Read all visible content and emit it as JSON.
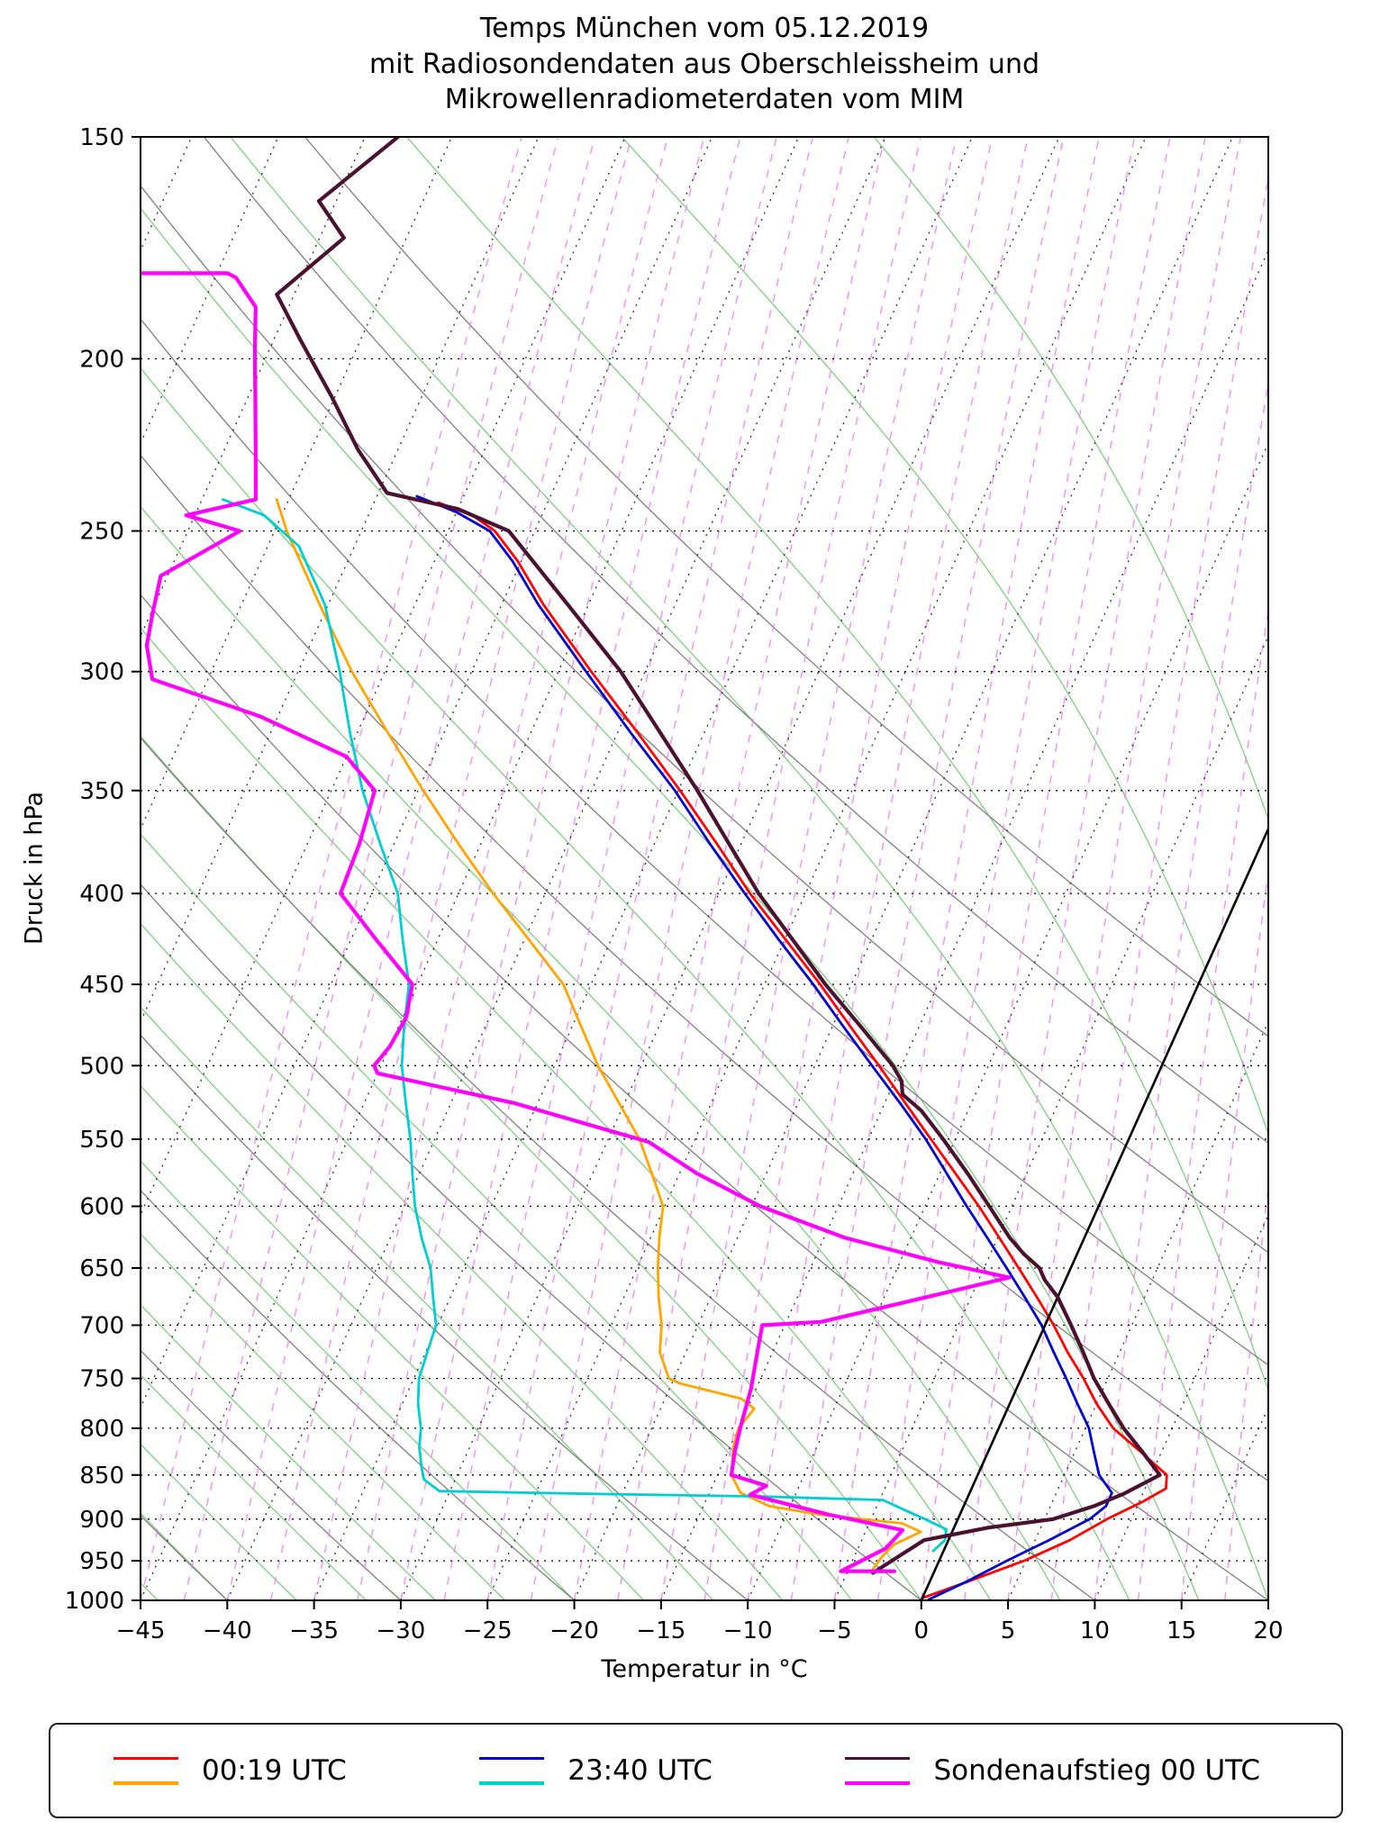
{
  "chart_data": {
    "type": "line",
    "title_lines": [
      "Temps München vom 05.12.2019",
      "mit Radiosondendaten aus Oberschleissheim und",
      "Mikrowellenradiometerdaten vom MIM"
    ],
    "x_axis": {
      "label": "Temperatur in °C",
      "unit": "°C",
      "min": -45,
      "max": 20,
      "tick_values": [
        -45,
        -40,
        -35,
        -30,
        -25,
        -20,
        -15,
        -10,
        -5,
        0,
        5,
        10,
        15,
        20
      ],
      "tick_labels": [
        "−45",
        "−40",
        "−35",
        "−30",
        "−25",
        "−20",
        "−15",
        "−10",
        "−5",
        "0",
        "5",
        "10",
        "15",
        "20"
      ]
    },
    "y_axis": {
      "label": "Druck in hPa",
      "unit": "hPa",
      "scale": "log",
      "min": 150,
      "max": 1000,
      "direction": "down",
      "tick_values": [
        150,
        200,
        250,
        300,
        350,
        400,
        450,
        500,
        550,
        600,
        650,
        700,
        750,
        800,
        850,
        900,
        950,
        1000
      ],
      "tick_labels": [
        "150",
        "200",
        "250",
        "300",
        "350",
        "400",
        "450",
        "500",
        "550",
        "600",
        "650",
        "700",
        "750",
        "800",
        "850",
        "900",
        "950",
        "1000"
      ]
    },
    "skew_deg_per_ln_p": 20,
    "legend": {
      "entries": [
        {
          "label": "00:19 UTC",
          "temperature_color": "#ff0000",
          "dewpoint_color": "#ffa500"
        },
        {
          "label": "23:40 UTC",
          "temperature_color": "#0000cd",
          "dewpoint_color": "#00ced1"
        },
        {
          "label": "Sondenaufstieg 00 UTC",
          "temperature_color": "#4a1130",
          "dewpoint_color": "#ff00ff"
        }
      ]
    },
    "background": {
      "isotherms": {
        "start": -110,
        "end": 45,
        "step": 5
      },
      "dry_adiabats": {
        "start": -80,
        "end": 70,
        "step": 10
      },
      "moist_adiabats": {
        "start": -64,
        "end": 32,
        "step": 4
      },
      "mixing_lines": {
        "start": -45,
        "end": 20,
        "step": 2.5
      },
      "isotherm_color": "#2b2b2b",
      "dry_adiabat_color": "#7f7f7f",
      "moist_adiabat_color": "#7ccf7c",
      "mixing_line_color": "#ee82ee",
      "pressure_line_color": "#000000"
    },
    "series": [
      {
        "id": "temp-0019",
        "name": "00:19 UTC Temperatur",
        "color": "#ff0000",
        "width": 2.8,
        "points": [
          [
            997,
            0.0
          ],
          [
            975,
            2.3
          ],
          [
            950,
            4.9
          ],
          [
            925,
            7.0
          ],
          [
            900,
            8.6
          ],
          [
            880,
            10.2
          ],
          [
            865,
            11.2
          ],
          [
            850,
            10.9
          ],
          [
            825,
            8.8
          ],
          [
            800,
            6.6
          ],
          [
            775,
            5.0
          ],
          [
            750,
            3.6
          ],
          [
            725,
            2.0
          ],
          [
            700,
            0.5
          ],
          [
            675,
            -1.2
          ],
          [
            650,
            -3.0
          ],
          [
            625,
            -4.9
          ],
          [
            600,
            -6.9
          ],
          [
            575,
            -9.1
          ],
          [
            550,
            -11.4
          ],
          [
            525,
            -13.8
          ],
          [
            500,
            -16.3
          ],
          [
            475,
            -19.0
          ],
          [
            450,
            -21.8
          ],
          [
            425,
            -24.9
          ],
          [
            400,
            -28.2
          ],
          [
            375,
            -31.4
          ],
          [
            350,
            -34.9
          ],
          [
            325,
            -38.8
          ],
          [
            300,
            -43.1
          ],
          [
            275,
            -47.6
          ],
          [
            260,
            -50.2
          ],
          [
            250,
            -52.3
          ],
          [
            245,
            -54.0
          ],
          [
            241,
            -56.3
          ]
        ]
      },
      {
        "id": "dew-0019",
        "name": "00:19 UTC Taupunkt",
        "color": "#ffa500",
        "width": 2.8,
        "points": [
          [
            960,
            -3.6
          ],
          [
            945,
            -3.4
          ],
          [
            930,
            -3.0
          ],
          [
            915,
            -1.8
          ],
          [
            905,
            -3.1
          ],
          [
            895,
            -8.0
          ],
          [
            885,
            -11.2
          ],
          [
            870,
            -13.2
          ],
          [
            850,
            -14.2
          ],
          [
            820,
            -14.8
          ],
          [
            800,
            -15.0
          ],
          [
            780,
            -14.6
          ],
          [
            770,
            -15.6
          ],
          [
            755,
            -19.5
          ],
          [
            750,
            -20.3
          ],
          [
            725,
            -21.5
          ],
          [
            700,
            -22.1
          ],
          [
            675,
            -23.0
          ],
          [
            650,
            -23.8
          ],
          [
            625,
            -24.5
          ],
          [
            600,
            -25.1
          ],
          [
            575,
            -26.6
          ],
          [
            550,
            -28.2
          ],
          [
            525,
            -30.3
          ],
          [
            500,
            -32.5
          ],
          [
            475,
            -34.5
          ],
          [
            450,
            -36.6
          ],
          [
            425,
            -39.7
          ],
          [
            400,
            -43.0
          ],
          [
            375,
            -46.3
          ],
          [
            350,
            -49.7
          ],
          [
            325,
            -53.2
          ],
          [
            300,
            -56.9
          ],
          [
            275,
            -60.5
          ],
          [
            250,
            -64.3
          ],
          [
            240,
            -65.7
          ]
        ]
      },
      {
        "id": "temp-2340",
        "name": "23:40 UTC Temperatur",
        "color": "#0000cd",
        "width": 2.8,
        "points": [
          [
            999,
            0.4
          ],
          [
            975,
            2.2
          ],
          [
            950,
            3.9
          ],
          [
            925,
            5.8
          ],
          [
            900,
            7.6
          ],
          [
            885,
            8.2
          ],
          [
            870,
            8.2
          ],
          [
            850,
            7.0
          ],
          [
            825,
            6.1
          ],
          [
            800,
            5.2
          ],
          [
            775,
            3.9
          ],
          [
            750,
            2.6
          ],
          [
            725,
            1.2
          ],
          [
            700,
            -0.2
          ],
          [
            675,
            -1.9
          ],
          [
            650,
            -3.7
          ],
          [
            625,
            -5.6
          ],
          [
            600,
            -7.6
          ],
          [
            575,
            -9.6
          ],
          [
            550,
            -11.7
          ],
          [
            525,
            -14.1
          ],
          [
            500,
            -16.7
          ],
          [
            475,
            -19.4
          ],
          [
            450,
            -22.2
          ],
          [
            425,
            -25.3
          ],
          [
            400,
            -28.5
          ],
          [
            375,
            -31.8
          ],
          [
            350,
            -35.2
          ],
          [
            325,
            -39.2
          ],
          [
            300,
            -43.4
          ],
          [
            275,
            -47.9
          ],
          [
            260,
            -50.5
          ],
          [
            250,
            -52.6
          ],
          [
            244,
            -55.0
          ],
          [
            239,
            -57.7
          ]
        ]
      },
      {
        "id": "dew-2340",
        "name": "23:40 UTC Taupunkt",
        "color": "#00ced1",
        "width": 2.8,
        "points": [
          [
            938,
            -0.6
          ],
          [
            925,
            -0.2
          ],
          [
            912,
            -0.4
          ],
          [
            900,
            -1.9
          ],
          [
            888,
            -3.5
          ],
          [
            878,
            -4.8
          ],
          [
            874,
            -12.0
          ],
          [
            871,
            -22.0
          ],
          [
            868,
            -30.6
          ],
          [
            855,
            -31.8
          ],
          [
            840,
            -32.3
          ],
          [
            820,
            -32.9
          ],
          [
            800,
            -33.3
          ],
          [
            775,
            -34.1
          ],
          [
            750,
            -34.7
          ],
          [
            725,
            -34.9
          ],
          [
            700,
            -35.1
          ],
          [
            675,
            -36.0
          ],
          [
            650,
            -36.9
          ],
          [
            625,
            -38.2
          ],
          [
            600,
            -39.4
          ],
          [
            575,
            -40.4
          ],
          [
            550,
            -41.4
          ],
          [
            525,
            -42.6
          ],
          [
            500,
            -43.8
          ],
          [
            475,
            -44.7
          ],
          [
            450,
            -45.5
          ],
          [
            425,
            -47.0
          ],
          [
            400,
            -48.5
          ],
          [
            375,
            -50.8
          ],
          [
            350,
            -53.2
          ],
          [
            325,
            -55.4
          ],
          [
            300,
            -57.6
          ],
          [
            275,
            -60.2
          ],
          [
            255,
            -63.2
          ],
          [
            245,
            -66.0
          ],
          [
            240,
            -68.8
          ]
        ]
      },
      {
        "id": "zero-isotherm",
        "name": "0 °C Isotherme",
        "color": "#000000",
        "width": 2.6,
        "points": [
          [
            1000,
            0
          ],
          [
            355,
            0
          ]
        ]
      },
      {
        "id": "temp-sonde",
        "name": "Sondenaufstieg 00 UTC Temperatur",
        "color": "#4a1130",
        "width": 4.2,
        "points": [
          [
            965,
            -3.5
          ],
          [
            940,
            -2.2
          ],
          [
            925,
            -1.4
          ],
          [
            910,
            2.0
          ],
          [
            900,
            5.5
          ],
          [
            885,
            7.5
          ],
          [
            871,
            8.9
          ],
          [
            850,
            10.5
          ],
          [
            825,
            8.9
          ],
          [
            800,
            7.2
          ],
          [
            775,
            5.7
          ],
          [
            750,
            4.2
          ],
          [
            725,
            2.9
          ],
          [
            700,
            1.5
          ],
          [
            675,
            0.0
          ],
          [
            660,
            -1.2
          ],
          [
            650,
            -1.8
          ],
          [
            638,
            -3.1
          ],
          [
            625,
            -4.3
          ],
          [
            600,
            -6.3
          ],
          [
            575,
            -8.4
          ],
          [
            550,
            -10.7
          ],
          [
            530,
            -12.7
          ],
          [
            519,
            -14.2
          ],
          [
            510,
            -14.6
          ],
          [
            500,
            -15.5
          ],
          [
            475,
            -18.4
          ],
          [
            450,
            -21.5
          ],
          [
            425,
            -24.5
          ],
          [
            400,
            -27.7
          ],
          [
            375,
            -30.7
          ],
          [
            350,
            -33.9
          ],
          [
            325,
            -37.5
          ],
          [
            300,
            -41.4
          ],
          [
            275,
            -46.2
          ],
          [
            250,
            -51.5
          ],
          [
            243,
            -55.0
          ],
          [
            238,
            -59.5
          ],
          [
            225,
            -62.3
          ],
          [
            210,
            -65.2
          ],
          [
            195,
            -68.5
          ],
          [
            184,
            -71.0
          ],
          [
            171,
            -68.6
          ],
          [
            163,
            -71.0
          ],
          [
            150,
            -68.1
          ]
        ]
      },
      {
        "id": "dew-sonde",
        "name": "Sondenaufstieg 00 UTC Taupunkt",
        "color": "#ff00ff",
        "width": 4.2,
        "points": [
          [
            963,
            -2.3
          ],
          [
            963,
            -5.4
          ],
          [
            935,
            -3.4
          ],
          [
            913,
            -2.9
          ],
          [
            895,
            -7.5
          ],
          [
            872,
            -12.6
          ],
          [
            862,
            -11.9
          ],
          [
            850,
            -14.2
          ],
          [
            825,
            -14.6
          ],
          [
            800,
            -14.9
          ],
          [
            780,
            -15.1
          ],
          [
            760,
            -15.3
          ],
          [
            730,
            -15.8
          ],
          [
            700,
            -16.3
          ],
          [
            697,
            -13.0
          ],
          [
            680,
            -8.8
          ],
          [
            658,
            -3.3
          ],
          [
            645,
            -7.8
          ],
          [
            625,
            -13.8
          ],
          [
            600,
            -19.5
          ],
          [
            575,
            -24.0
          ],
          [
            552,
            -27.6
          ],
          [
            525,
            -36.3
          ],
          [
            505,
            -45.0
          ],
          [
            500,
            -45.4
          ],
          [
            488,
            -45.0
          ],
          [
            470,
            -44.8
          ],
          [
            450,
            -45.3
          ],
          [
            425,
            -48.5
          ],
          [
            400,
            -51.8
          ],
          [
            375,
            -52.0
          ],
          [
            350,
            -52.5
          ],
          [
            335,
            -55.0
          ],
          [
            318,
            -61.0
          ],
          [
            303,
            -68.2
          ],
          [
            290,
            -69.4
          ],
          [
            278,
            -69.9
          ],
          [
            265,
            -70.4
          ],
          [
            250,
            -67.0
          ],
          [
            245,
            -70.5
          ],
          [
            240,
            -66.9
          ],
          [
            225,
            -68.2
          ],
          [
            210,
            -69.6
          ],
          [
            198,
            -70.8
          ],
          [
            187,
            -71.9
          ],
          [
            180,
            -73.8
          ],
          [
            179,
            -74.4
          ],
          [
            179,
            -79.3
          ]
        ]
      }
    ]
  }
}
